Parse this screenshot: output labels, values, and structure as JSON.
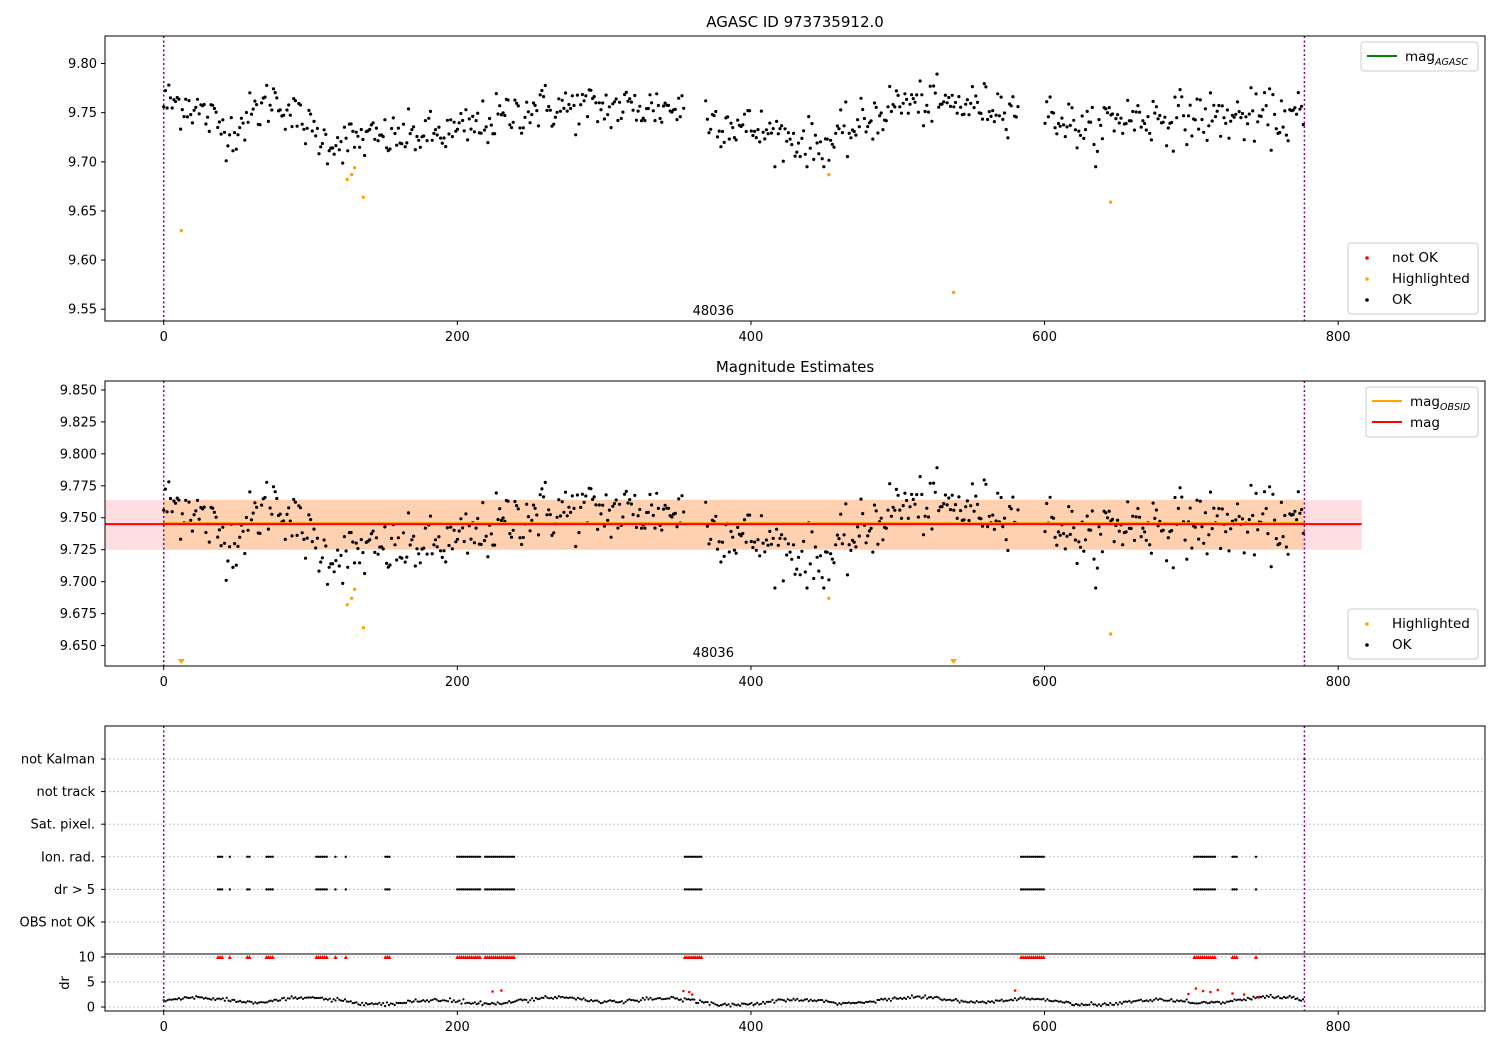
{
  "colors": {
    "ok": "#000000",
    "highlighted": "#ffa500",
    "not_ok": "#ff0000",
    "mag_agasc": "#008000",
    "mag_obsid": "#ffa500",
    "mag": "#ff0000",
    "band_obsid": "#ffa500",
    "band_mag": "#ffb6c1",
    "obs_boundary": "#800080",
    "grid": "#b0b0b0"
  },
  "chart_data": [
    {
      "type": "scatter",
      "title": "AGASC ID 973735912.0",
      "xlim": [
        -40,
        900
      ],
      "ylim": [
        9.538,
        9.828
      ],
      "xticks": [
        0,
        200,
        400,
        600,
        800
      ],
      "yticks": [
        9.55,
        9.6,
        9.65,
        9.7,
        9.75,
        9.8
      ],
      "ytick_labels": [
        "9.55",
        "9.60",
        "9.65",
        "9.70",
        "9.75",
        "9.80"
      ],
      "obs_boundaries": [
        0,
        777
      ],
      "obsid_label": {
        "text": "48036",
        "x": 388,
        "y": 9.548
      },
      "segments": [
        {
          "x": [
            0,
            16
          ],
          "y": [
            9.76,
            9.76
          ],
          "sd": 0.013
        },
        {
          "x": [
            16,
            45
          ],
          "y": [
            9.76,
            9.73
          ],
          "sd": 0.012
        },
        {
          "x": [
            45,
            75
          ],
          "y": [
            9.73,
            9.765
          ],
          "sd": 0.012
        },
        {
          "x": [
            75,
            110
          ],
          "y": [
            9.765,
            9.72
          ],
          "sd": 0.011
        },
        {
          "x": [
            110,
            200
          ],
          "y": [
            9.72,
            9.73
          ],
          "sd": 0.011
        },
        {
          "x": [
            200,
            250
          ],
          "y": [
            9.73,
            9.755
          ],
          "sd": 0.012
        },
        {
          "x": [
            250,
            370
          ],
          "y": [
            9.755,
            9.755
          ],
          "sd": 0.012
        },
        {
          "x": [
            370,
            450
          ],
          "y": [
            9.745,
            9.715
          ],
          "sd": 0.012
        },
        {
          "x": [
            450,
            500
          ],
          "y": [
            9.715,
            9.76
          ],
          "sd": 0.012
        },
        {
          "x": [
            500,
            600
          ],
          "y": [
            9.76,
            9.755
          ],
          "sd": 0.011
        },
        {
          "x": [
            600,
            640
          ],
          "y": [
            9.75,
            9.725
          ],
          "sd": 0.011
        },
        {
          "x": [
            640,
            777
          ],
          "y": [
            9.745,
            9.745
          ],
          "sd": 0.013
        }
      ],
      "gaps": [
        [
          355,
          368
        ],
        [
          582,
          600
        ]
      ],
      "highlighted": [
        {
          "x": 12,
          "y": 9.63
        },
        {
          "x": 125,
          "y": 9.682
        },
        {
          "x": 128,
          "y": 9.687
        },
        {
          "x": 130,
          "y": 9.694
        },
        {
          "x": 136,
          "y": 9.664
        },
        {
          "x": 453,
          "y": 9.687
        },
        {
          "x": 538,
          "y": 9.567
        },
        {
          "x": 645,
          "y": 9.659
        }
      ],
      "legend_top": [
        {
          "label": "mag",
          "sub": "AGASC",
          "color": "#008000",
          "kind": "line"
        }
      ],
      "legend_bottom": [
        {
          "label": "not OK",
          "color": "#ff0000",
          "kind": "dot"
        },
        {
          "label": "Highlighted",
          "color": "#ffa500",
          "kind": "dot"
        },
        {
          "label": "OK",
          "color": "#000000",
          "kind": "dot"
        }
      ]
    },
    {
      "type": "scatter",
      "title": "Magnitude Estimates",
      "xlim": [
        -40,
        900
      ],
      "ylim": [
        9.634,
        9.857
      ],
      "xticks": [
        0,
        200,
        400,
        600,
        800
      ],
      "yticks": [
        9.65,
        9.675,
        9.7,
        9.725,
        9.75,
        9.775,
        9.8,
        9.825,
        9.85
      ],
      "ytick_labels": [
        "9.650",
        "9.675",
        "9.700",
        "9.725",
        "9.750",
        "9.775",
        "9.800",
        "9.825",
        "9.850"
      ],
      "obs_boundaries": [
        0,
        777
      ],
      "obsid_label": {
        "text": "48036",
        "x": 388,
        "y": 9.644
      },
      "mag_line": {
        "y": 9.745,
        "x": [
          -40,
          816
        ]
      },
      "mag_band": {
        "y": [
          9.725,
          9.764
        ],
        "x": [
          -40,
          816
        ]
      },
      "mag_obsid_line": {
        "y": 9.745,
        "x": [
          0,
          777
        ]
      },
      "mag_obsid_band": {
        "y": [
          9.725,
          9.764
        ],
        "x": [
          0,
          777
        ]
      },
      "below_range_markers": [
        {
          "x": 12
        },
        {
          "x": 538
        }
      ],
      "legend_top": [
        {
          "label": "mag",
          "sub": "OBSID",
          "color": "#ffa500",
          "kind": "line"
        },
        {
          "label": "mag",
          "sub": "",
          "color": "#ff0000",
          "kind": "line"
        }
      ],
      "legend_bottom": [
        {
          "label": "Highlighted",
          "color": "#ffa500",
          "kind": "dot"
        },
        {
          "label": "OK",
          "color": "#000000",
          "kind": "dot"
        }
      ]
    },
    {
      "type": "scatter",
      "xlim": [
        -40,
        900
      ],
      "xticks": [
        0,
        200,
        400,
        600,
        800
      ],
      "flag_rows": [
        "not Kalman",
        "not track",
        "Sat. pixel.",
        "Ion. rad.",
        "dr > 5",
        "OBS not OK"
      ],
      "dr_ylabel": "dr",
      "dr_ylim": [
        -0.8,
        10.6
      ],
      "dr_yticks": [
        0,
        5,
        10
      ],
      "obs_boundaries": [
        0,
        777
      ],
      "flag_clusters": [
        [
          37,
          40
        ],
        [
          45,
          45
        ],
        [
          57,
          59
        ],
        [
          70,
          75
        ],
        [
          104,
          112
        ],
        [
          117,
          118
        ],
        [
          124,
          124
        ],
        [
          151,
          154
        ],
        [
          200,
          216
        ],
        [
          219,
          240
        ],
        [
          355,
          367
        ],
        [
          584,
          600
        ],
        [
          702,
          716
        ],
        [
          728,
          732
        ],
        [
          744,
          744
        ]
      ],
      "not_kalman_points": [
        777
      ],
      "dr_red_points": [
        {
          "x": 224,
          "y": 3.1
        },
        {
          "x": 230,
          "y": 3.3
        },
        {
          "x": 354,
          "y": 3.2
        },
        {
          "x": 358,
          "y": 3.0
        },
        {
          "x": 360,
          "y": 2.5
        },
        {
          "x": 580,
          "y": 3.3
        },
        {
          "x": 698,
          "y": 2.6
        },
        {
          "x": 703,
          "y": 3.7
        },
        {
          "x": 708,
          "y": 3.2
        },
        {
          "x": 713,
          "y": 3.0
        },
        {
          "x": 718,
          "y": 3.4
        },
        {
          "x": 728,
          "y": 2.7
        },
        {
          "x": 736,
          "y": 2.5
        },
        {
          "x": 746,
          "y": 1.9
        }
      ]
    }
  ]
}
